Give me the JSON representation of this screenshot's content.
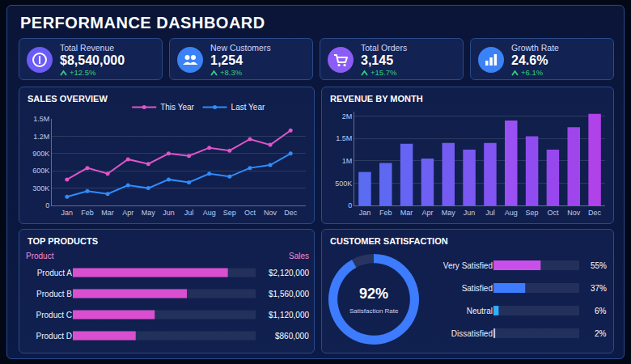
{
  "title": "PERFORMANCE DASHBOARD",
  "kpis": [
    {
      "label": "Total Revenue",
      "value": "$8,540,000",
      "change": "+12.5%"
    },
    {
      "label": "New Customers",
      "value": "1,254",
      "change": "+8.3%"
    },
    {
      "label": "Total Orders",
      "value": "3,145",
      "change": "+15.7%"
    },
    {
      "label": "Growth Rate",
      "value": "24.6%",
      "change": "+6.1%"
    }
  ],
  "chart_data": [
    {
      "type": "line",
      "title": "SALES OVERVIEW",
      "categories": [
        "Jan",
        "Feb",
        "Mar",
        "Apr",
        "May",
        "Jun",
        "Jul",
        "Aug",
        "Sep",
        "Oct",
        "Nov",
        "Dec"
      ],
      "series": [
        {
          "name": "This Year",
          "color": "#e055c8",
          "values": [
            450000,
            650000,
            550000,
            800000,
            720000,
            900000,
            860000,
            1000000,
            950000,
            1150000,
            1050000,
            1300000
          ]
        },
        {
          "name": "Last Year",
          "color": "#2f8cff",
          "values": [
            150000,
            250000,
            200000,
            350000,
            300000,
            450000,
            400000,
            550000,
            500000,
            650000,
            700000,
            900000
          ]
        }
      ],
      "ylim": [
        0,
        1500000
      ],
      "yticks": [
        0,
        {
          "value": 300000,
          "label": "300K"
        },
        {
          "value": 600000,
          "label": "600K"
        },
        {
          "value": 900000,
          "label": "900K"
        },
        {
          "value": 1200000,
          "label": "1.2M"
        },
        {
          "value": 1500000,
          "label": "1.5M"
        }
      ],
      "grid": true,
      "legend": "top",
      "marker": "circle"
    },
    {
      "type": "bar",
      "title": "REVENUE BY MONTH",
      "categories": [
        "Jan",
        "Feb",
        "Mar",
        "Apr",
        "May",
        "Jun",
        "Jul",
        "Aug",
        "Sep",
        "Oct",
        "Nov",
        "Dec"
      ],
      "values": [
        750000,
        950000,
        1380000,
        1050000,
        1400000,
        1250000,
        1400000,
        1900000,
        1550000,
        1250000,
        1750000,
        2050000
      ],
      "colors": [
        "#5a6cf2",
        "#5f68f2",
        "#6664f2",
        "#6d60f2",
        "#745cf2",
        "#7b58f2",
        "#8254f2",
        "#9a50f2",
        "#904cf0",
        "#9648ee",
        "#a045ec",
        "#b042ea"
      ],
      "ylim": [
        0,
        2100000
      ],
      "yticks": [
        0,
        {
          "value": 500000,
          "label": "500K"
        },
        {
          "value": 1000000,
          "label": "1M"
        },
        {
          "value": 1500000,
          "label": "1.5M"
        },
        {
          "value": 2000000,
          "label": "2M"
        }
      ],
      "grid": true
    },
    {
      "type": "bar",
      "title": "TOP PRODUCTS",
      "orientation": "horizontal",
      "ylabel": "Product",
      "xlabel": "Sales",
      "categories": [
        "Product A",
        "Product B",
        "Product C",
        "Product D"
      ],
      "values": [
        2120000,
        1560000,
        1120000,
        860000
      ],
      "value_labels": [
        "$2,120,000",
        "$1,560,000",
        "$1,120,000",
        "$860,000"
      ],
      "color": "#d94fd0",
      "xlim": [
        0,
        2500000
      ],
      "data_labels": true,
      "tick_labels": "y"
    },
    {
      "type": "pie",
      "title": "CUSTOMER SATISFACTION",
      "values": [
        92
      ],
      "value_labels": [
        "92%"
      ],
      "subtitle": "Satisfaction Rate",
      "range": [
        0,
        100
      ],
      "color": "#3d7bff"
    },
    {
      "type": "bar",
      "orientation": "horizontal",
      "categories": [
        "Very Satisfied",
        "Satisfied",
        "Neutral",
        "Dissatisfied"
      ],
      "values": [
        55,
        37,
        6,
        2
      ],
      "value_labels": [
        "55%",
        "37%",
        "6%",
        "2%"
      ],
      "colors": [
        "#c850e8",
        "#3d7bff",
        "#2fb0ff",
        "#b8c8ff"
      ],
      "xlim": [
        0,
        100
      ],
      "data_labels": true,
      "tick_labels": "y"
    }
  ]
}
